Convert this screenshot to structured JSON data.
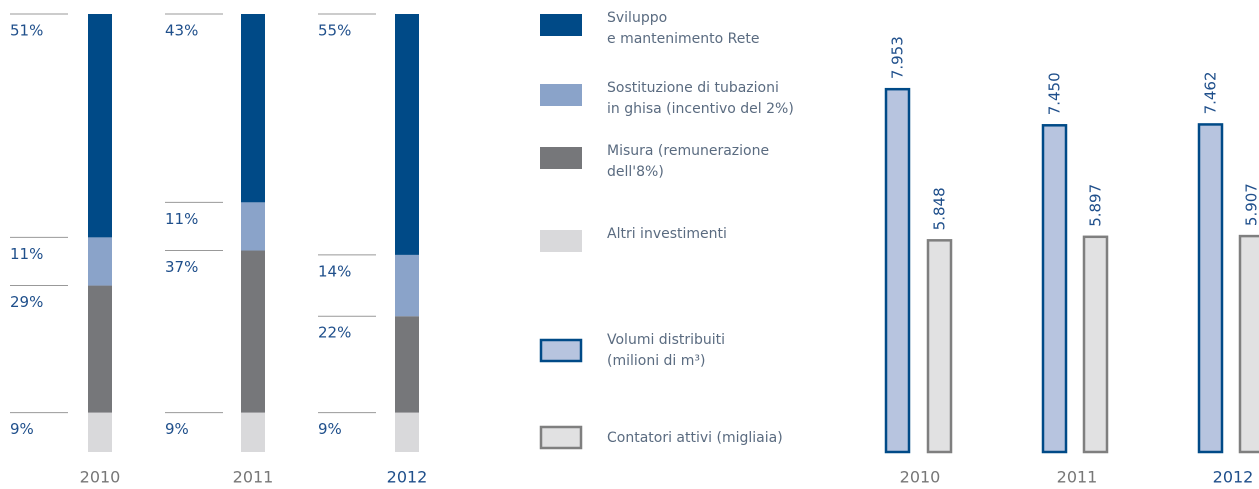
{
  "chart_data": [
    {
      "type": "stacked_bar",
      "categories": [
        "2010",
        "2011",
        "2012"
      ],
      "series": [
        {
          "name": "Altri investimenti",
          "color": "#d9d9db",
          "values": [
            9,
            9,
            9
          ],
          "value_labels": [
            "9%",
            "9%",
            "9%"
          ]
        },
        {
          "name": "Misura (remunerazione\ndell'8%)",
          "color": "#76777a",
          "values": [
            29,
            37,
            22
          ],
          "value_labels": [
            "29%",
            "37%",
            "22%"
          ]
        },
        {
          "name": "Sostituzione di tubazioni\nin ghisa (incentivo del 2%)",
          "color": "#8aa3c9",
          "values": [
            11,
            11,
            14
          ],
          "value_labels": [
            "11%",
            "11%",
            "14%"
          ]
        },
        {
          "name": "Sviluppo\ne mantenimento Rete",
          "color": "#004a87",
          "values": [
            51,
            43,
            55
          ],
          "value_labels": [
            "51%",
            "43%",
            "55%"
          ]
        }
      ],
      "ylim": [
        0,
        100
      ]
    },
    {
      "type": "bar",
      "categories": [
        "2010",
        "2011",
        "2012"
      ],
      "series": [
        {
          "name": "Volumi distribuiti\n(milioni di m³)",
          "color": "#b7c4df",
          "edge": "#004a87",
          "values": [
            7953,
            7450,
            7462
          ],
          "value_labels": [
            "7.953",
            "7.450",
            "7.462"
          ]
        },
        {
          "name": "Contatori attivi (migliaia)",
          "color": "#e1e1e2",
          "edge": "#7f7f7f",
          "values": [
            5848,
            5897,
            5907
          ],
          "value_labels": [
            "5.848",
            "5.897",
            "5.907"
          ]
        }
      ],
      "ylim": [
        2900,
        9000
      ]
    }
  ]
}
